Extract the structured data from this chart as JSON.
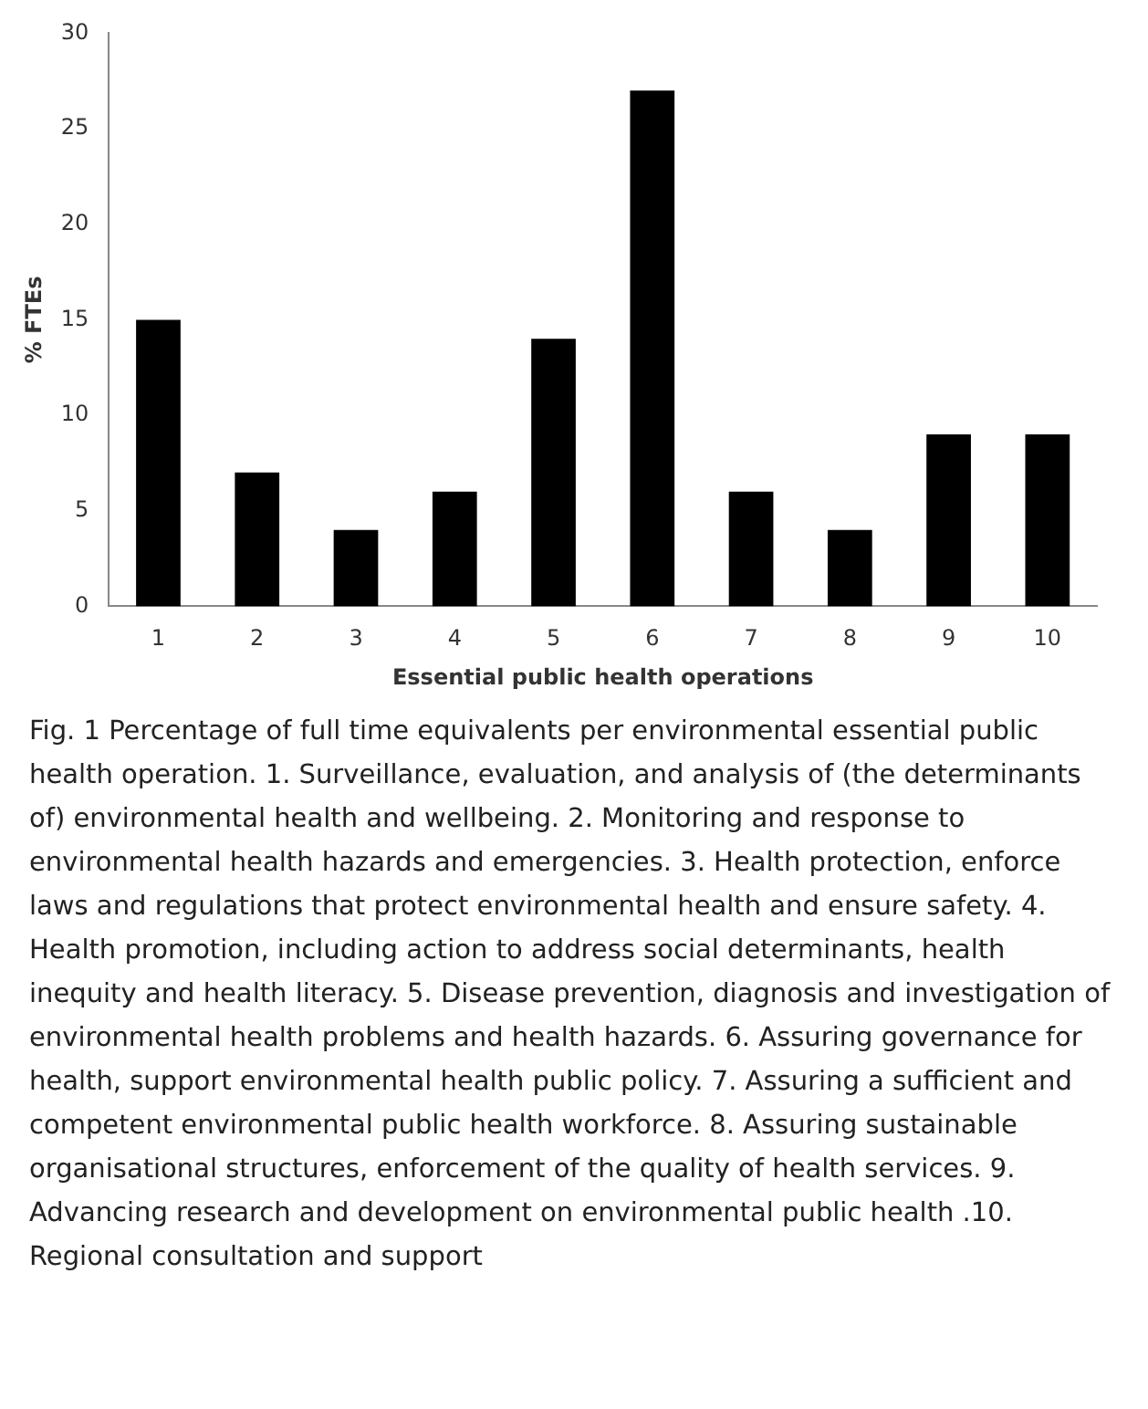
{
  "chart_data": {
    "type": "bar",
    "categories": [
      "1",
      "2",
      "3",
      "4",
      "5",
      "6",
      "7",
      "8",
      "9",
      "10"
    ],
    "values": [
      15,
      7,
      4,
      6,
      14,
      27,
      6,
      4,
      9,
      9
    ],
    "color": "#000000",
    "xlabel": "Essential public health operations",
    "ylabel": "% FTEs",
    "ylim": [
      0,
      30
    ],
    "yticks": [
      0,
      5,
      10,
      15,
      20,
      25,
      30
    ],
    "annotations": [
      "Fig. 1 Percentage of full time equivalents per environmental essential public health operation. 1. Surveillance, evaluation, and analysis of (the determinants of) environmental health and wellbeing. 2. Monitoring and response to environmental health hazards and emergencies. 3. Health protection, enforce laws and regulations that protect environmental health and ensure safety. 4. Health promotion, including action to address social determinants, health inequity and health literacy. 5. Disease prevention, diagnosis and investigation of environmental health problems and health hazards. 6. Assuring governance for health, support environmental health public policy. 7. Assuring a sufficient and competent environmental public health workforce. 8. Assuring sustainable organisational structures, enforcement of the quality of health services. 9. Advancing research and development on environmental public health .10. Regional consultation and support"
    ]
  }
}
